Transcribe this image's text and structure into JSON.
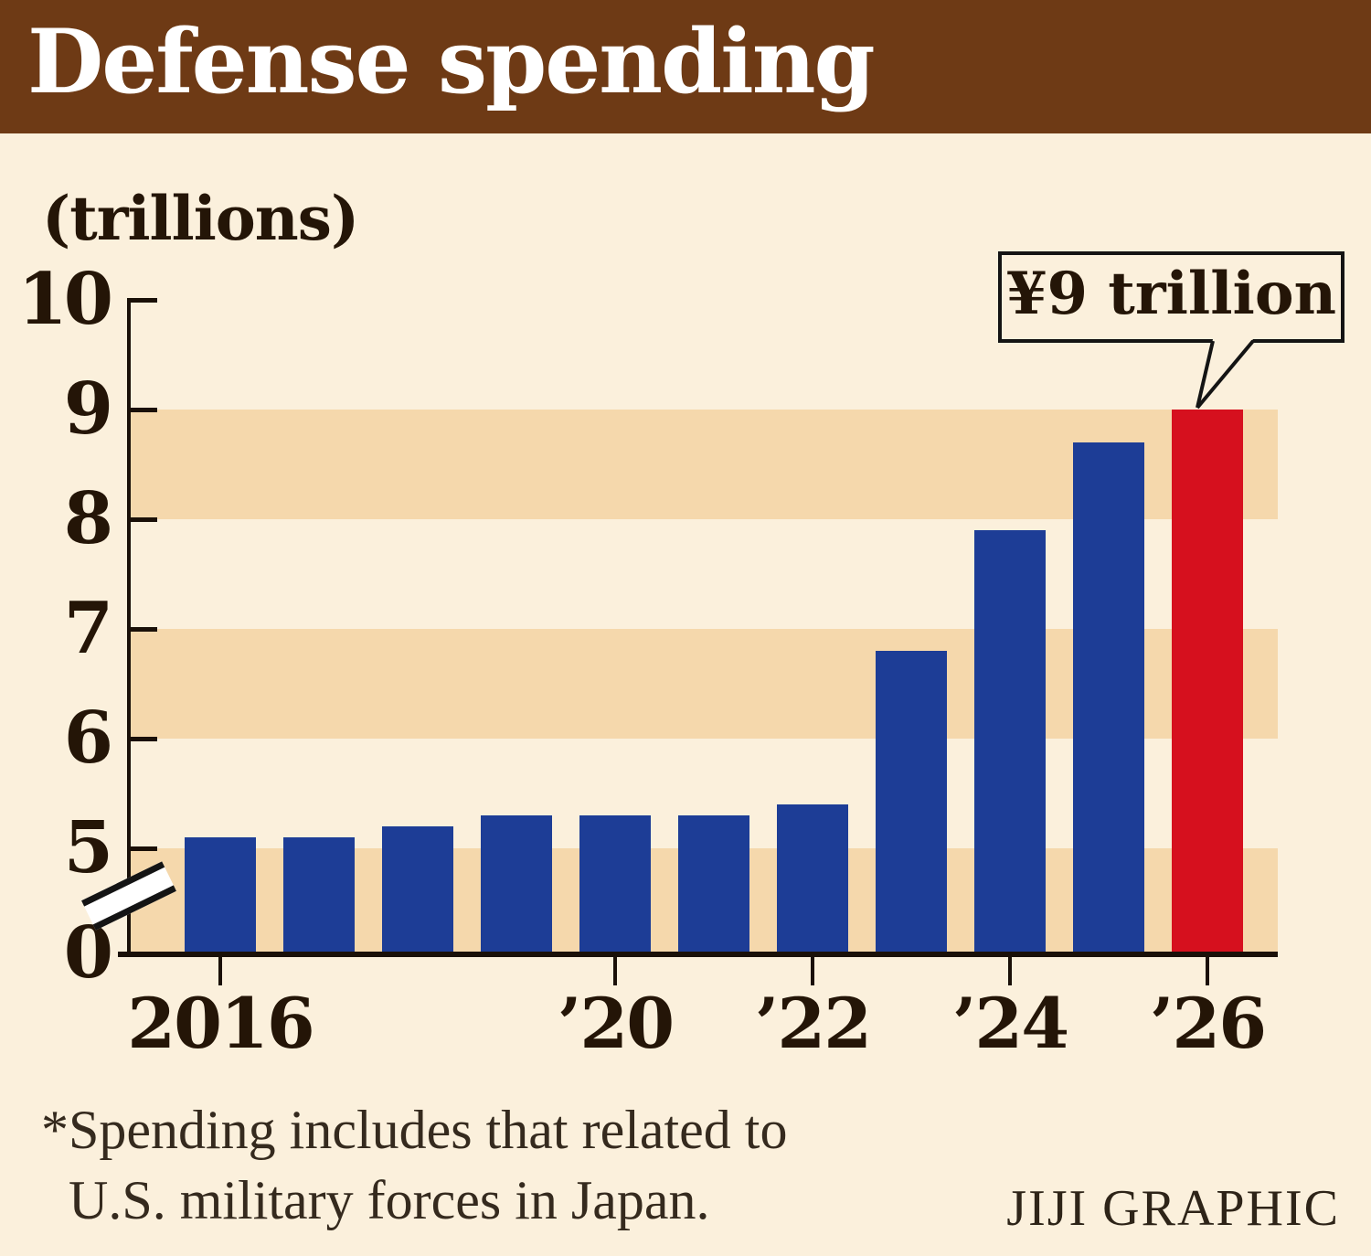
{
  "header": {
    "title": "Defense spending"
  },
  "chart": {
    "units_label": "(trillions)",
    "callout_label": "¥9 trillion",
    "y_tick_labels": [
      "10",
      "9",
      "8",
      "7",
      "6",
      "5",
      "0"
    ],
    "x_tick_labels": [
      "2016",
      "’20",
      "’22",
      "’24",
      "’26"
    ]
  },
  "chart_data": {
    "type": "bar",
    "title": "Defense spending",
    "units": "trillions of yen",
    "categories": [
      2016,
      2017,
      2018,
      2019,
      2020,
      2021,
      2022,
      2023,
      2024,
      2025,
      2026
    ],
    "values": [
      5.1,
      5.1,
      5.2,
      5.3,
      5.3,
      5.3,
      5.4,
      6.8,
      7.9,
      8.7,
      9.0
    ],
    "ylabel": "(trillions)",
    "ylim": [
      0,
      10
    ],
    "y_ticks": [
      10,
      9,
      8,
      7,
      6,
      5,
      0
    ],
    "x_tick_years": [
      2016,
      2020,
      2022,
      2024,
      2026
    ],
    "axis_break": {
      "between": [
        0,
        5
      ]
    },
    "stripe_bands": [
      [
        9,
        8
      ],
      [
        7,
        6
      ],
      [
        5,
        0
      ]
    ],
    "grid": "striped-bands",
    "legend": "none",
    "highlight": {
      "year": 2026,
      "value": 9.0,
      "label": "¥9 trillion"
    }
  },
  "footnote": {
    "line1": "*Spending includes that related to",
    "line2": "U.S. military forces in Japan."
  },
  "credit": "JIJI GRAPHIC",
  "colors": {
    "header_bg": "#6e3a15",
    "background": "#fbf0dc",
    "stripe": "#f5d8ac",
    "bar_blue": "#1d3d96",
    "bar_red": "#d6101e",
    "ink": "#241507",
    "title_text": "#ffffff"
  }
}
